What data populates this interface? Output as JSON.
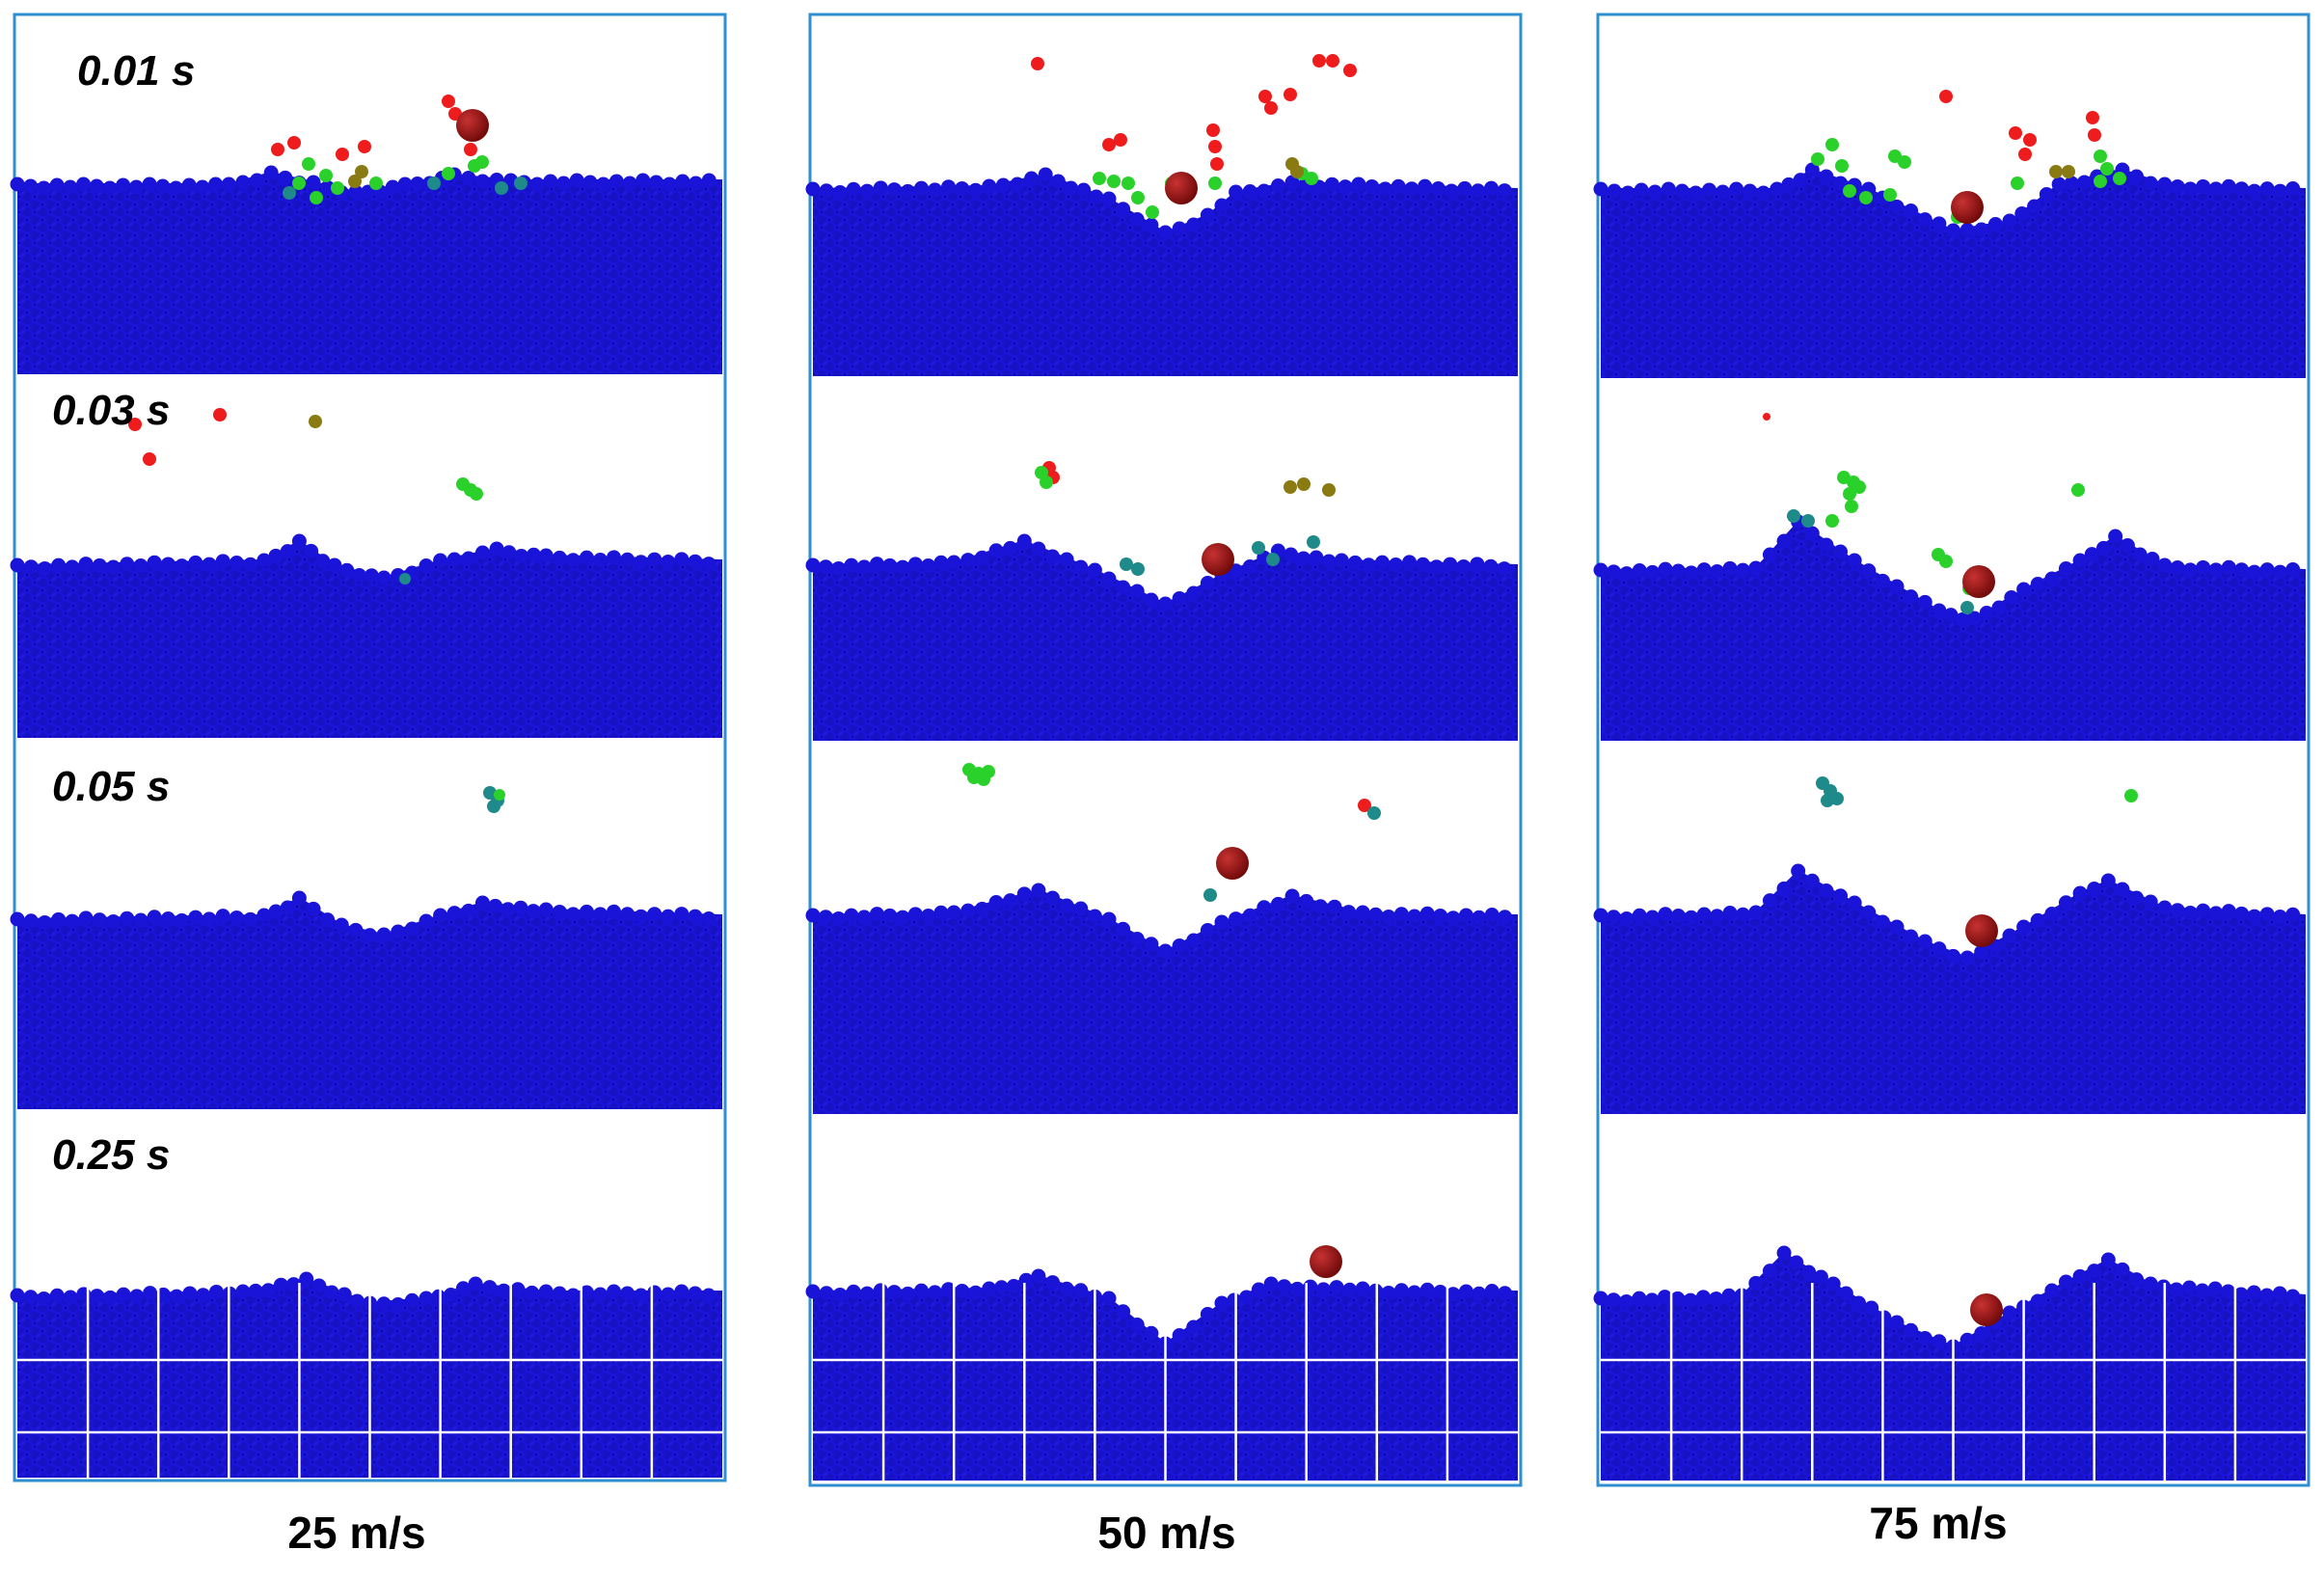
{
  "figure": {
    "time_labels": [
      "0.01 s",
      "0.03 s",
      "0.05 s",
      "0.25 s"
    ],
    "columns": [
      {
        "label": "25 m/s"
      },
      {
        "label": "50 m/s"
      },
      {
        "label": "75 m/s"
      }
    ],
    "colors": {
      "bed": "#1a14d8",
      "bed_dark": "#0c0a9a",
      "frame": "#2f8fd0",
      "projectile": "#8e0f0f",
      "ejecta_red": "#ee1c1c",
      "ejecta_green": "#2ad12a",
      "ejecta_teal": "#1f8a8a",
      "ejecta_olive": "#8a7a12",
      "grid": "#ffffff"
    }
  }
}
